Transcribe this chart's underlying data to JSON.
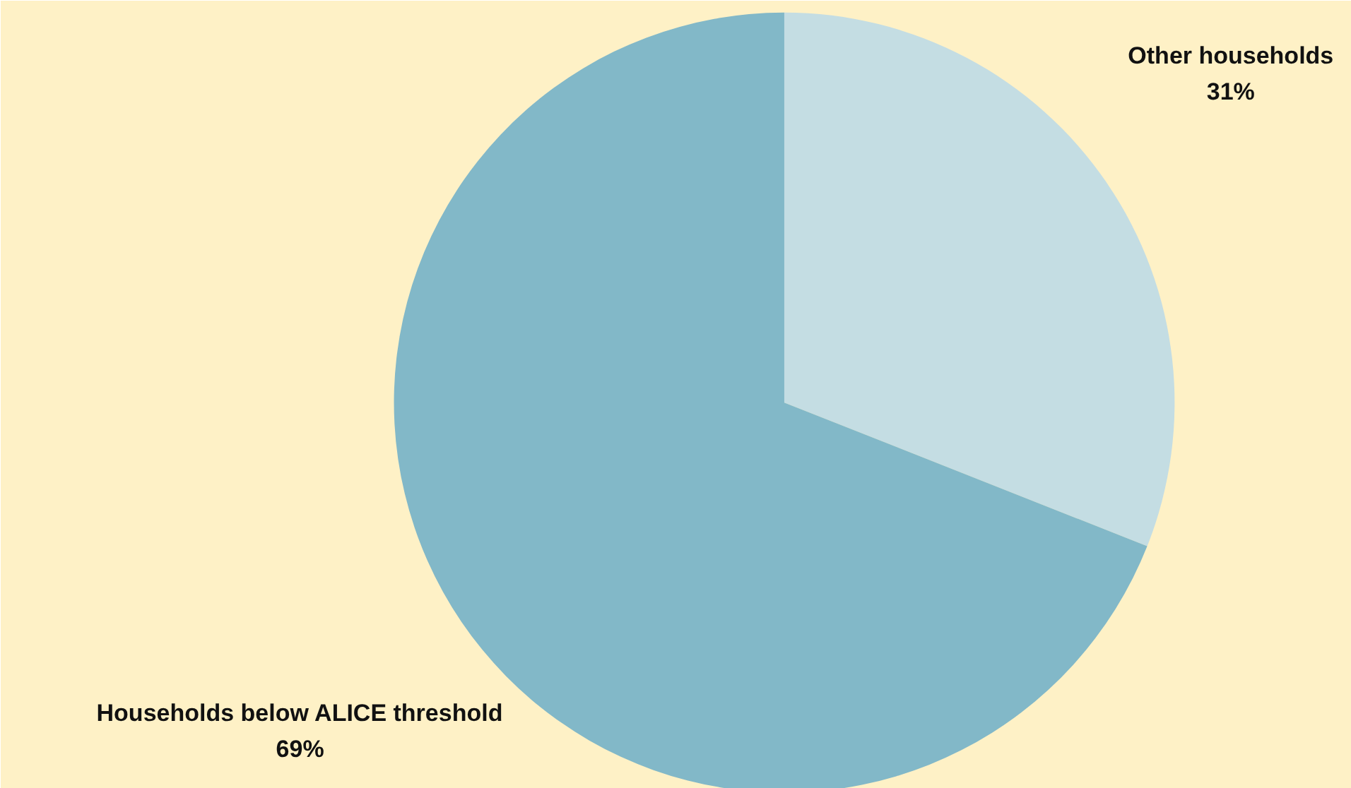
{
  "chart_data": {
    "type": "pie",
    "categories": [
      "Other households",
      "Households below ALICE threshold"
    ],
    "values": [
      31,
      69
    ],
    "colors": [
      "#c4dde3",
      "#82b8c8"
    ],
    "value_labels": [
      "31%",
      "69%"
    ]
  }
}
